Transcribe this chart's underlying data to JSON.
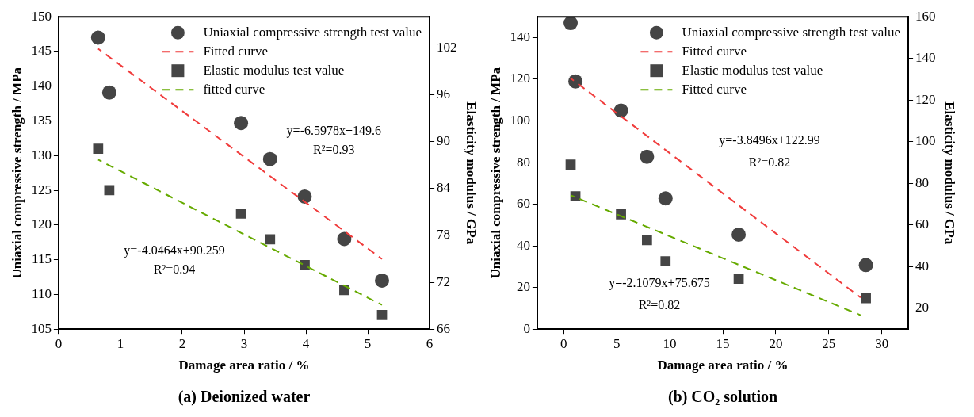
{
  "chart_data": [
    {
      "type": "scatter",
      "title": "(a) Deionized water",
      "xlabel": "Damage area ratio / %",
      "ylabel": "Uniaxial compressive strength / MPa",
      "y2label": "Elasticity modulus / GPa",
      "xlim": [
        0,
        6
      ],
      "xticks": [
        0,
        1,
        2,
        3,
        4,
        5,
        6
      ],
      "ylim": [
        105,
        150
      ],
      "yticks": [
        105,
        110,
        115,
        120,
        125,
        130,
        135,
        140,
        145,
        150
      ],
      "y2lim": [
        66,
        106
      ],
      "y2ticks": [
        66,
        72,
        78,
        84,
        90,
        96,
        102
      ],
      "grid": false,
      "legend": "top right",
      "annotations": [
        "y=-6.5978x+149.6",
        "R²=0.93",
        "y=-4.0464x+90.259",
        "R²=0.94"
      ],
      "series": [
        {
          "name": "Uniaxial compressive strength test value",
          "type": "scatter",
          "marker": "circle",
          "color": "#454545",
          "x": [
            0.64,
            0.82,
            2.95,
            3.42,
            3.98,
            4.62,
            5.23
          ],
          "values": [
            147,
            139.1,
            134.7,
            129.5,
            124.1,
            118,
            112
          ]
        },
        {
          "name": "Fitted curve",
          "type": "line",
          "marker": "none",
          "line_style": "dashed",
          "color": "#f03c3c",
          "x": [
            0.64,
            5.23
          ],
          "values": [
            145.4,
            115.1
          ]
        },
        {
          "name": "Elastic modulus test value",
          "type": "scatter",
          "marker": "square",
          "axis": "y2",
          "color": "#454545",
          "x": [
            0.64,
            0.82,
            2.95,
            3.42,
            3.98,
            4.62,
            5.23
          ],
          "values": [
            89.1,
            83.8,
            80.8,
            77.5,
            74.2,
            71.0,
            67.8
          ]
        },
        {
          "name": "fitted curve",
          "type": "line",
          "marker": "none",
          "line_style": "dashed",
          "axis": "y2",
          "color": "#66aa00",
          "x": [
            0.64,
            5.23
          ],
          "values": [
            87.7,
            69.1
          ]
        }
      ]
    },
    {
      "type": "scatter",
      "title": "(b) CO₂ solution",
      "xlabel": "Damage area ratio / %",
      "ylabel": "Uniaxial compressive strength / MPa",
      "y2label": "Elasticity modulus / GPa",
      "xlim": [
        -2.5,
        32.5
      ],
      "xticks": [
        0,
        5,
        10,
        15,
        20,
        25,
        30
      ],
      "ylim": [
        0,
        150
      ],
      "yticks": [
        0,
        20,
        40,
        60,
        80,
        100,
        120,
        140
      ],
      "y2lim": [
        10,
        160
      ],
      "y2ticks": [
        20,
        40,
        60,
        80,
        100,
        120,
        140,
        160
      ],
      "grid": false,
      "legend": "top right",
      "annotations": [
        "y=-3.8496x+122.99",
        "R²=0.82",
        "y=-2.1079x+75.675",
        "R²=0.82"
      ],
      "series": [
        {
          "name": "Uniaxial compressive strength test value",
          "type": "scatter",
          "marker": "circle",
          "color": "#454545",
          "x": [
            0.65,
            1.1,
            5.4,
            7.85,
            9.6,
            16.5,
            28.5
          ],
          "values": [
            147,
            119,
            105,
            82.8,
            62.8,
            45.4,
            30.8
          ]
        },
        {
          "name": "Fitted curve",
          "type": "line",
          "marker": "none",
          "line_style": "dashed",
          "color": "#f03c3c",
          "x": [
            0.65,
            28
          ],
          "values": [
            120.5,
            15.2
          ]
        },
        {
          "name": "Elastic modulus test value",
          "type": "scatter",
          "marker": "square",
          "axis": "y2",
          "color": "#454545",
          "x": [
            0.65,
            1.1,
            5.4,
            7.85,
            9.6,
            16.5,
            28.5
          ],
          "values": [
            89,
            73.8,
            65.1,
            52.8,
            42.6,
            34.2,
            24.9
          ]
        },
        {
          "name": "Fitted curve",
          "type": "line",
          "marker": "none",
          "line_style": "dashed",
          "axis": "y2",
          "color": "#66aa00",
          "x": [
            0.65,
            28
          ],
          "values": [
            74.3,
            16.7
          ]
        }
      ]
    }
  ]
}
